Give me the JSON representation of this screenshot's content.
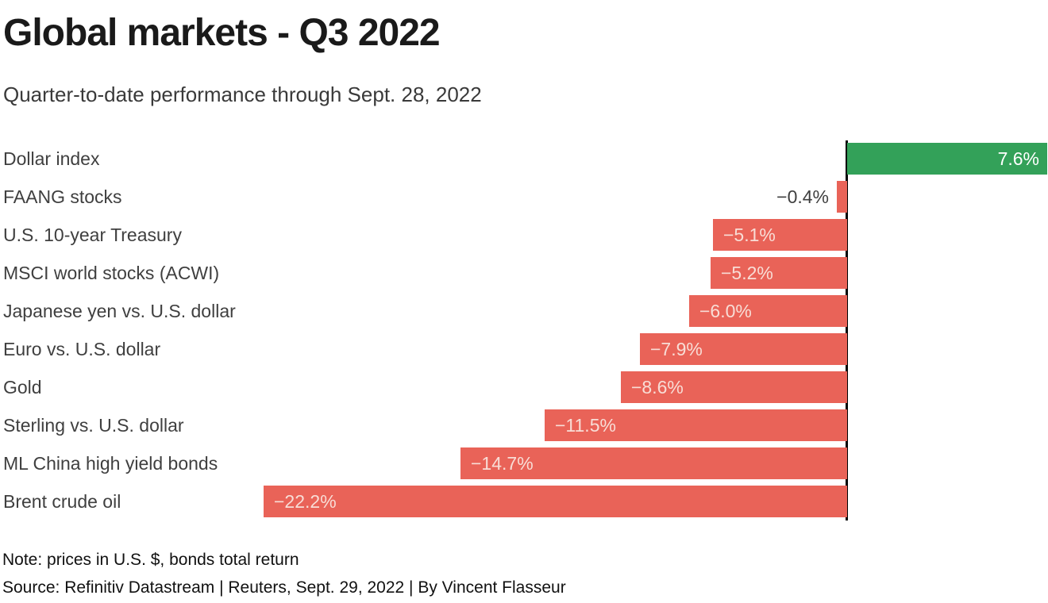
{
  "title": "Global markets - Q3 2022",
  "subtitle": "Quarter-to-date performance through Sept. 28, 2022",
  "note": "Note: prices in U.S. $, bonds total return",
  "source": "Source: Refinitiv Datastream | Reuters, Sept. 29, 2022 | By Vincent Flasseur",
  "colors": {
    "positive": "#33a159",
    "negative": "#e96358",
    "axis": "#000000",
    "value_on_positive": "#ffffff",
    "value_on_negative": "#f8ddd6",
    "value_outside": "#3f3f3f",
    "category_label": "#3f3f3f"
  },
  "chart_data": {
    "type": "bar",
    "orientation": "horizontal",
    "title": "Global markets - Q3 2022",
    "subtitle": "Quarter-to-date performance through Sept. 28, 2022",
    "unit": "%",
    "xlim": [
      -22.2,
      7.6
    ],
    "grid": false,
    "legend": "none",
    "categories": [
      "Dollar index",
      "FAANG stocks",
      "U.S. 10-year Treasury",
      "MSCI world stocks (ACWI)",
      "Japanese yen vs. U.S. dollar",
      "Euro vs. U.S. dollar",
      "Gold",
      "Sterling vs. U.S. dollar",
      "ML China high yield bonds",
      "Brent crude oil"
    ],
    "values": [
      7.6,
      -0.4,
      -5.1,
      -5.2,
      -6.0,
      -7.9,
      -8.6,
      -11.5,
      -14.7,
      -22.2
    ],
    "value_labels": [
      "7.6%",
      "−0.4%",
      "−5.1%",
      "−5.2%",
      "−6.0%",
      "−7.9%",
      "−8.6%",
      "−11.5%",
      "−14.7%",
      "−22.2%"
    ]
  }
}
